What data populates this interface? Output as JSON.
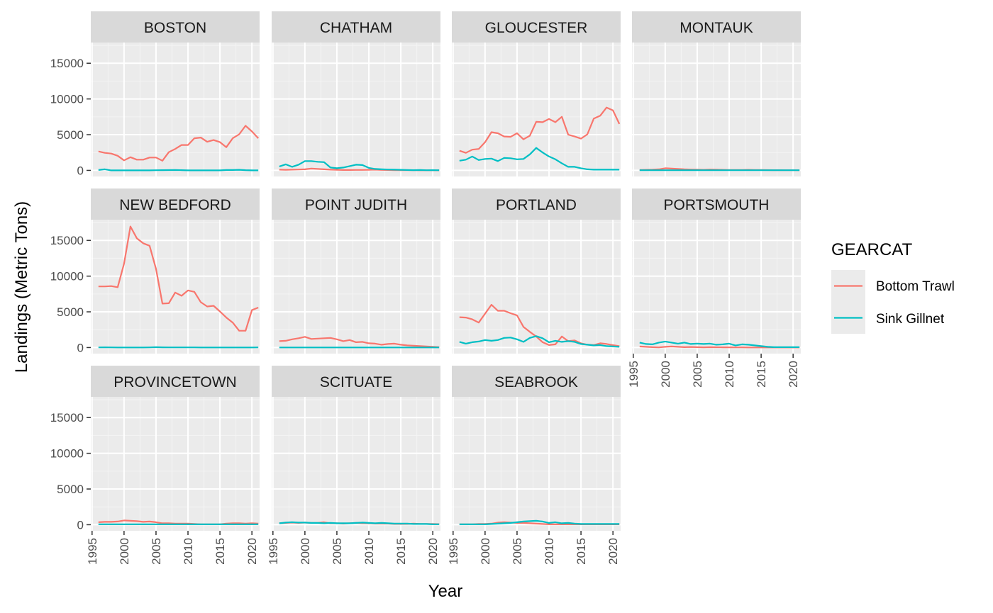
{
  "chart_data": {
    "type": "line",
    "facet_ncol": 4,
    "xlabel": "Year",
    "ylabel": "Landings (Metric Tons)",
    "xlim": [
      1994.8,
      2021.2
    ],
    "ylim": [
      -850,
      17900
    ],
    "x_ticks": [
      1995,
      2000,
      2005,
      2010,
      2015,
      2020
    ],
    "y_ticks": [
      0,
      5000,
      10000,
      15000
    ],
    "x_tick_labels": [
      "1995",
      "2000",
      "2005",
      "2010",
      "2015",
      "2020"
    ],
    "y_tick_labels": [
      "0",
      "5000",
      "10000",
      "15000"
    ],
    "grid": true,
    "legend": {
      "title": "GEARCAT",
      "placement": "right",
      "entries": [
        {
          "name": "Bottom Trawl",
          "color": "#f8766d"
        },
        {
          "name": "Sink Gillnet",
          "color": "#00bfc4"
        }
      ]
    },
    "x": [
      1996,
      1997,
      1998,
      1999,
      2000,
      2001,
      2002,
      2003,
      2004,
      2005,
      2006,
      2007,
      2008,
      2009,
      2010,
      2011,
      2012,
      2013,
      2014,
      2015,
      2016,
      2017,
      2018,
      2019,
      2020,
      2021
    ],
    "panels": [
      {
        "label": "BOSTON",
        "series": [
          {
            "name": "Bottom Trawl",
            "values": [
              2650,
              2450,
              2350,
              2050,
              1400,
              1850,
              1500,
              1500,
              1800,
              1800,
              1350,
              2550,
              3000,
              3550,
              3550,
              4500,
              4600,
              4000,
              4250,
              3950,
              3250,
              4500,
              5050,
              6250,
              5450,
              4500
            ]
          },
          {
            "name": "Sink Gillnet",
            "values": [
              50,
              150,
              0,
              0,
              0,
              0,
              0,
              0,
              0,
              20,
              30,
              40,
              50,
              30,
              0,
              0,
              0,
              0,
              0,
              0,
              50,
              50,
              80,
              30,
              0,
              0
            ]
          }
        ]
      },
      {
        "label": "CHATHAM",
        "series": [
          {
            "name": "Bottom Trawl",
            "values": [
              100,
              80,
              100,
              120,
              150,
              250,
              200,
              150,
              100,
              80,
              50,
              50,
              60,
              60,
              80,
              100,
              60,
              50,
              30,
              20,
              20,
              20,
              10,
              10,
              10,
              5
            ]
          },
          {
            "name": "Sink Gillnet",
            "values": [
              550,
              850,
              500,
              800,
              1300,
              1300,
              1200,
              1150,
              400,
              300,
              400,
              600,
              800,
              750,
              350,
              200,
              150,
              120,
              100,
              80,
              50,
              30,
              50,
              20,
              30,
              20
            ]
          }
        ]
      },
      {
        "label": "GLOUCESTER",
        "series": [
          {
            "name": "Bottom Trawl",
            "values": [
              2750,
              2450,
              2900,
              3000,
              3950,
              5350,
              5200,
              4750,
              4700,
              5200,
              4350,
              4850,
              6800,
              6750,
              7200,
              6750,
              7500,
              5000,
              4750,
              4450,
              5050,
              7250,
              7650,
              8800,
              8400,
              6500
            ]
          },
          {
            "name": "Sink Gillnet",
            "values": [
              1350,
              1500,
              1950,
              1450,
              1600,
              1650,
              1300,
              1750,
              1700,
              1550,
              1600,
              2250,
              3150,
              2500,
              1950,
              1550,
              1000,
              500,
              500,
              300,
              150,
              100,
              100,
              100,
              100,
              100
            ]
          }
        ]
      },
      {
        "label": "MONTAUK",
        "series": [
          {
            "name": "Bottom Trawl",
            "values": [
              50,
              80,
              100,
              150,
              300,
              250,
              200,
              150,
              120,
              100,
              80,
              120,
              100,
              80,
              50,
              50,
              60,
              80,
              60,
              50,
              40,
              30,
              30,
              20,
              20,
              10
            ]
          },
          {
            "name": "Sink Gillnet",
            "values": [
              20,
              20,
              20,
              20,
              20,
              20,
              20,
              20,
              20,
              20,
              20,
              20,
              20,
              20,
              20,
              20,
              20,
              20,
              20,
              20,
              20,
              20,
              20,
              20,
              20,
              20
            ]
          }
        ]
      },
      {
        "label": "NEW BEDFORD",
        "series": [
          {
            "name": "Bottom Trawl",
            "values": [
              8550,
              8550,
              8600,
              8450,
              11750,
              16950,
              15300,
              14600,
              14250,
              11000,
              6150,
              6200,
              7700,
              7250,
              8000,
              7800,
              6350,
              5750,
              5850,
              5050,
              4200,
              3500,
              2350,
              2350,
              5250,
              5600
            ]
          },
          {
            "name": "Sink Gillnet",
            "values": [
              20,
              30,
              20,
              10,
              10,
              10,
              10,
              10,
              20,
              50,
              30,
              20,
              20,
              20,
              20,
              20,
              10,
              10,
              10,
              10,
              10,
              10,
              10,
              10,
              10,
              20
            ]
          }
        ]
      },
      {
        "label": "POINT JUDITH",
        "series": [
          {
            "name": "Bottom Trawl",
            "values": [
              900,
              950,
              1150,
              1300,
              1500,
              1200,
              1250,
              1300,
              1350,
              1150,
              900,
              1050,
              750,
              800,
              600,
              550,
              400,
              500,
              550,
              400,
              300,
              250,
              200,
              150,
              100,
              50
            ]
          },
          {
            "name": "Sink Gillnet",
            "values": [
              10,
              10,
              10,
              10,
              10,
              10,
              10,
              10,
              10,
              10,
              10,
              10,
              10,
              10,
              10,
              10,
              10,
              10,
              10,
              10,
              10,
              10,
              10,
              10,
              10,
              10
            ]
          }
        ]
      },
      {
        "label": "PORTLAND",
        "series": [
          {
            "name": "Bottom Trawl",
            "values": [
              4250,
              4200,
              3950,
              3500,
              4750,
              6000,
              5150,
              5150,
              4800,
              4500,
              2900,
              2200,
              1550,
              750,
              350,
              450,
              1550,
              900,
              1000,
              600,
              400,
              350,
              600,
              500,
              350,
              200
            ]
          },
          {
            "name": "Sink Gillnet",
            "values": [
              800,
              550,
              750,
              850,
              1050,
              950,
              1050,
              1350,
              1400,
              1150,
              800,
              1350,
              1600,
              1300,
              750,
              950,
              800,
              900,
              800,
              500,
              400,
              300,
              350,
              200,
              150,
              100
            ]
          }
        ]
      },
      {
        "label": "PORTSMOUTH",
        "series": [
          {
            "name": "Bottom Trawl",
            "values": [
              150,
              100,
              50,
              20,
              100,
              150,
              100,
              50,
              80,
              50,
              30,
              50,
              40,
              30,
              30,
              20,
              20,
              10,
              10,
              10,
              10,
              10,
              10,
              10,
              10,
              10
            ]
          },
          {
            "name": "Sink Gillnet",
            "values": [
              700,
              500,
              450,
              700,
              850,
              700,
              550,
              700,
              500,
              550,
              500,
              550,
              400,
              450,
              550,
              300,
              450,
              400,
              300,
              200,
              100,
              50,
              50,
              50,
              50,
              50
            ]
          }
        ]
      },
      {
        "label": "PROVINCETOWN",
        "series": [
          {
            "name": "Bottom Trawl",
            "values": [
              350,
              400,
              400,
              450,
              600,
              550,
              500,
              400,
              450,
              350,
              200,
              200,
              150,
              150,
              150,
              100,
              50,
              50,
              50,
              50,
              150,
              200,
              200,
              150,
              200,
              150
            ]
          },
          {
            "name": "Sink Gillnet",
            "values": [
              50,
              50,
              50,
              50,
              50,
              50,
              50,
              50,
              50,
              50,
              50,
              50,
              50,
              50,
              50,
              50,
              50,
              50,
              50,
              50,
              50,
              50,
              50,
              50,
              50,
              50
            ]
          }
        ]
      },
      {
        "label": "SCITUATE",
        "series": [
          {
            "name": "Bottom Trawl",
            "values": [
              200,
              250,
              300,
              250,
              300,
              250,
              250,
              350,
              200,
              200,
              150,
              200,
              250,
              200,
              200,
              150,
              150,
              150,
              100,
              100,
              100,
              150,
              100,
              100,
              100,
              80
            ]
          },
          {
            "name": "Sink Gillnet",
            "values": [
              200,
              300,
              350,
              300,
              300,
              250,
              250,
              200,
              250,
              200,
              200,
              200,
              250,
              300,
              250,
              200,
              250,
              200,
              150,
              150,
              150,
              100,
              100,
              100,
              50,
              50
            ]
          }
        ]
      },
      {
        "label": "SEABROOK",
        "series": [
          {
            "name": "Bottom Trawl",
            "values": [
              50,
              50,
              50,
              100,
              100,
              150,
              300,
              350,
              300,
              250,
              250,
              200,
              150,
              100,
              50,
              50,
              50,
              50,
              50,
              50,
              50,
              50,
              50,
              50,
              50,
              50
            ]
          },
          {
            "name": "Sink Gillnet",
            "values": [
              50,
              50,
              50,
              50,
              50,
              100,
              150,
              200,
              250,
              350,
              450,
              500,
              550,
              450,
              250,
              350,
              200,
              250,
              150,
              100,
              100,
              100,
              100,
              100,
              100,
              100
            ]
          }
        ]
      }
    ]
  }
}
